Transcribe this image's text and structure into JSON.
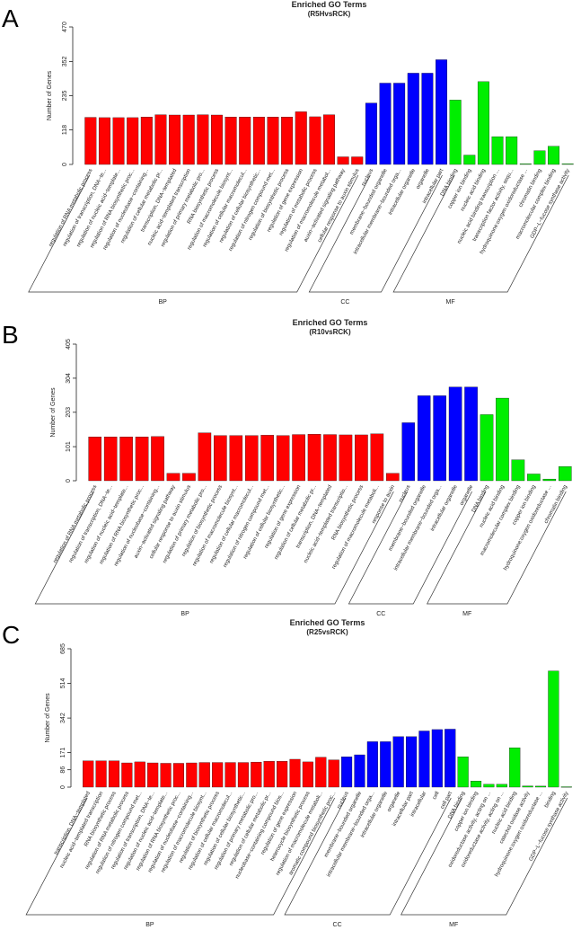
{
  "colors": {
    "BP": "#ff0000",
    "CC": "#0000ff",
    "MF": "#00ee00"
  },
  "chart_data": [
    {
      "panel": "A",
      "type": "bar",
      "title": "Enriched GO Terms",
      "subtitle": "(R5HvsRCK)",
      "ylabel": "Number of Genes",
      "ylim": [
        0,
        470
      ],
      "yticks": [
        0,
        118,
        235,
        352,
        470
      ],
      "categories": [
        "regulation of RNA metabolic process",
        "regulation of transcription, DNA−te...",
        "regulation of nucleic acid−template...",
        "regulation of RNA biosynthetic proc...",
        "regulation of nucleobase−containing...",
        "regulation of cellular metabolic pr...",
        "transcription, DNA−templated",
        "nucleic acid−templated transcription",
        "regulation of primary metabolic pro...",
        "RNA biosynthetic process",
        "regulation of macromolecule biosynt...",
        "regulation of cellular macromolecul...",
        "regulation of cellular biosynthetic...",
        "regulation of nitrogen compound met...",
        "regulation of biosynthetic process",
        "regulation of gene expression",
        "regulation of metabolic process",
        "regulation of macromolecule metabol...",
        "auxin−activated signaling pathway",
        "cellular response to auxin stimulus",
        "nucleus",
        "membrane−bounded organelle",
        "intracellular membrane−bounded orga...",
        "intracellular organelle",
        "organelle",
        "intracellular part",
        "DNA binding",
        "copper ion binding",
        "nucleic acid binding",
        "nucleic acid binding transcription ...",
        "transcription factor activity, sequ...",
        "hydroquinone:oxygen oxidoreductase ...",
        "chromatin binding",
        "macromolecular complex binding",
        "GDP−L−fucose synthase activity"
      ],
      "values": [
        161,
        160,
        160,
        160,
        162,
        170,
        169,
        169,
        170,
        169,
        162,
        162,
        162,
        162,
        162,
        180,
        163,
        170,
        26,
        26,
        210,
        278,
        278,
        312,
        312,
        358,
        220,
        32,
        283,
        95,
        95,
        2,
        47,
        62,
        2
      ],
      "groups": [
        "BP",
        "BP",
        "BP",
        "BP",
        "BP",
        "BP",
        "BP",
        "BP",
        "BP",
        "BP",
        "BP",
        "BP",
        "BP",
        "BP",
        "BP",
        "BP",
        "BP",
        "BP",
        "BP",
        "BP",
        "CC",
        "CC",
        "CC",
        "CC",
        "CC",
        "CC",
        "MF",
        "MF",
        "MF",
        "MF",
        "MF",
        "MF",
        "MF",
        "MF",
        "MF"
      ],
      "group_labels": [
        "BP",
        "CC",
        "MF"
      ]
    },
    {
      "panel": "B",
      "type": "bar",
      "title": "Enriched GO Terms",
      "subtitle": "(R10vsRCK)",
      "ylabel": "Number of Genes",
      "ylim": [
        0,
        405
      ],
      "yticks": [
        0,
        101,
        203,
        304,
        405
      ],
      "categories": [
        "regulation of RNA metabolic process",
        "regulation of transcription, DNA−te...",
        "regulation of nucleic acid−template...",
        "regulation of RNA biosynthetic proc...",
        "regulation of nucleobase−containing...",
        "auxin−activated signaling pathway",
        "cellular response to auxin stimulus",
        "regulation of primary metabolic pro...",
        "regulation of biosynthetic process",
        "regulation of macromolecule biosynt...",
        "regulation of cellular macromolecul...",
        "regulation of nitrogen compound met...",
        "regulation of cellular biosynthetic...",
        "regulation of gene expression",
        "regulation of cellular metabolic pr...",
        "transcription, DNA−templated",
        "nucleic acid−templated transcriptio...",
        "RNA biosynthetic process",
        "regulation of macromolecule metaboli...",
        "response to auxin",
        "nucleus",
        "membrane−bounded organelle",
        "intracellular membrane−bounded orga...",
        "intracellular organelle",
        "organelle",
        "DNA binding",
        "nucleic acid binding",
        "macromolecular complex binding",
        "copper ion binding",
        "hydroquinone:oxygen oxidoreductase ...",
        "chromatin binding"
      ],
      "values": [
        130,
        130,
        130,
        130,
        131,
        22,
        22,
        142,
        134,
        134,
        134,
        135,
        134,
        137,
        138,
        137,
        136,
        136,
        139,
        22,
        172,
        252,
        252,
        278,
        278,
        196,
        245,
        62,
        20,
        5,
        42
      ],
      "groups": [
        "BP",
        "BP",
        "BP",
        "BP",
        "BP",
        "BP",
        "BP",
        "BP",
        "BP",
        "BP",
        "BP",
        "BP",
        "BP",
        "BP",
        "BP",
        "BP",
        "BP",
        "BP",
        "BP",
        "BP",
        "CC",
        "CC",
        "CC",
        "CC",
        "CC",
        "MF",
        "MF",
        "MF",
        "MF",
        "MF",
        "MF"
      ],
      "group_labels": [
        "BP",
        "CC",
        "MF"
      ]
    },
    {
      "panel": "C",
      "type": "bar",
      "title": "Enriched GO Terms",
      "subtitle": "(R25vsRCK)",
      "ylabel": "Number of Genes",
      "ylim": [
        0,
        685
      ],
      "yticks": [
        0,
        86,
        171,
        342,
        514,
        685
      ],
      "categories": [
        "transcription, DNA−templated",
        "nucleic acid−templated transcription",
        "RNA biosynthetic process",
        "regulation of RNA metabolic process",
        "regulation of nitrogen compound met...",
        "regulation of transcription, DNA−te...",
        "regulation of nucleic acid−template...",
        "regulation of RNA biosynthetic proc...",
        "regulation of nucleobase−containing...",
        "regulation of macromolecule biosynt...",
        "regulation of biosynthetic process",
        "regulation of cellular macromolecul...",
        "regulation of cellular biosynthetic...",
        "regulation of primary metabolic pro...",
        "regulation of cellular metabolic pr...",
        "nucleobase−containing compound bios...",
        "regulation of gene expression",
        "heterocycle biosynthetic process",
        "regulation of macromolecule metaboli...",
        "aromatic compound biosynthetic proc...",
        "nucleus",
        "membrane−bounded organelle",
        "intracellular membrane−bounded orga...",
        "intracellular organelle",
        "organelle",
        "intracellular part",
        "intracellular",
        "cell",
        "cell part",
        "DNA binding",
        "copper ion binding",
        "oxidoreductase activity, acting on ...",
        "oxidoreductase activity, acting on ...",
        "nucleic acid binding",
        "catechol oxidase activity",
        "hydroquinone:oxygen oxidoreductase ...",
        "binding",
        "GDP−L−fucose synthase activity"
      ],
      "values": [
        130,
        130,
        130,
        120,
        125,
        120,
        118,
        118,
        120,
        122,
        122,
        122,
        122,
        124,
        128,
        128,
        138,
        125,
        148,
        135,
        150,
        160,
        225,
        225,
        250,
        250,
        278,
        285,
        287,
        150,
        30,
        14,
        14,
        195,
        6,
        5,
        575,
        2
      ],
      "groups": [
        "BP",
        "BP",
        "BP",
        "BP",
        "BP",
        "BP",
        "BP",
        "BP",
        "BP",
        "BP",
        "BP",
        "BP",
        "BP",
        "BP",
        "BP",
        "BP",
        "BP",
        "BP",
        "BP",
        "BP",
        "CC",
        "CC",
        "CC",
        "CC",
        "CC",
        "CC",
        "CC",
        "CC",
        "CC",
        "MF",
        "MF",
        "MF",
        "MF",
        "MF",
        "MF",
        "MF",
        "MF",
        "MF"
      ],
      "group_labels": [
        "BP",
        "CC",
        "MF"
      ]
    }
  ]
}
